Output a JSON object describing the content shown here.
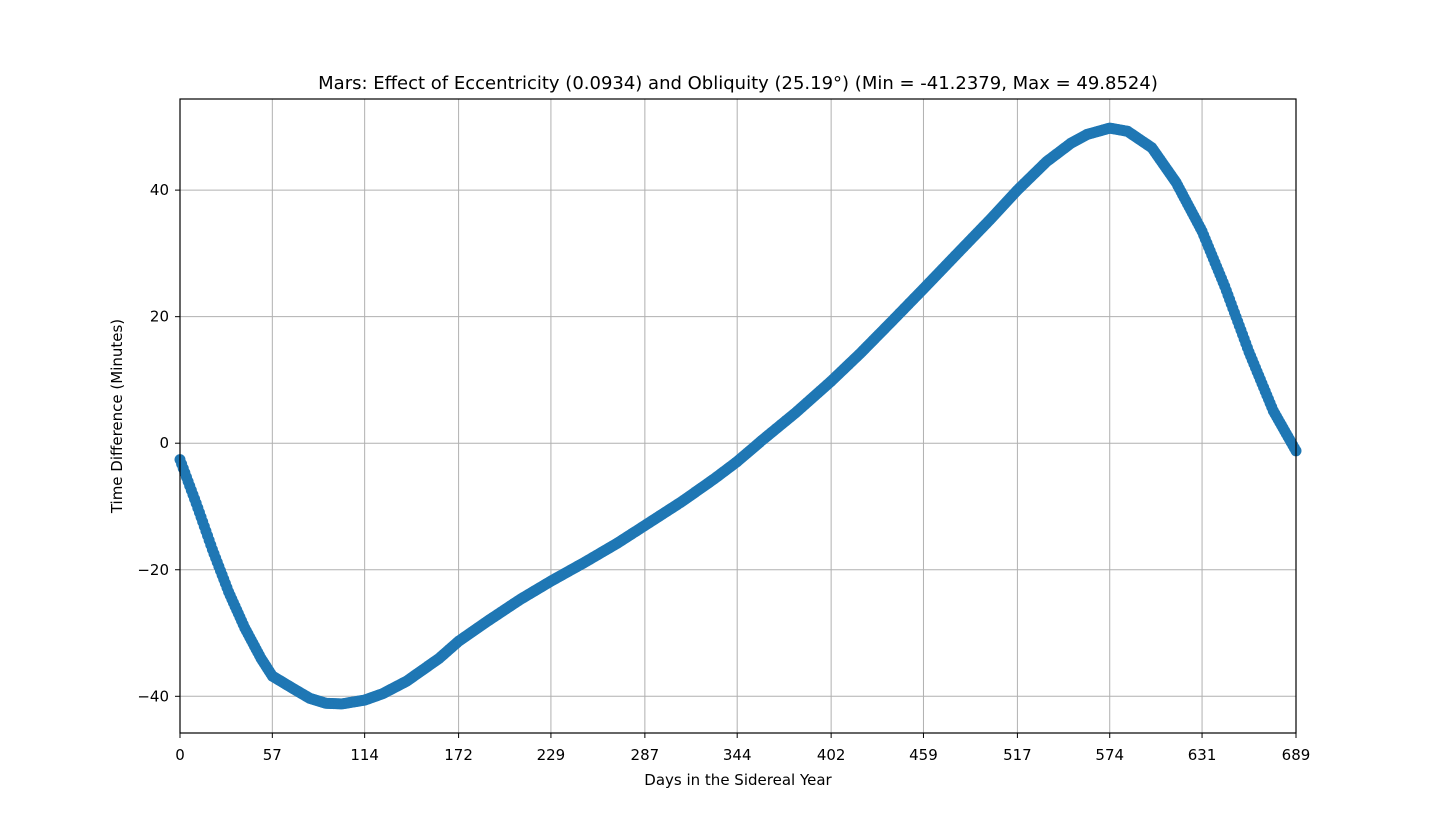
{
  "chart_data": {
    "type": "scatter",
    "title": "Mars: Effect of Eccentricity (0.0934) and Obliquity (25.19°) (Min = -41.2379, Max = 49.8524)",
    "xlabel": "Days in the Sidereal Year",
    "ylabel": "Time Difference (Minutes)",
    "xlim": [
      0,
      689
    ],
    "ylim": [
      -45.8,
      54.4
    ],
    "xticks": [
      0,
      57,
      114,
      172,
      229,
      287,
      344,
      402,
      459,
      517,
      574,
      631,
      689
    ],
    "xtick_labels": [
      "0",
      "57",
      "114",
      "172",
      "229",
      "287",
      "344",
      "402",
      "459",
      "517",
      "574",
      "631",
      "689"
    ],
    "yticks": [
      -40,
      -20,
      0,
      20,
      40
    ],
    "ytick_labels": [
      "−40",
      "−20",
      "0",
      "20",
      "40"
    ],
    "grid": true,
    "marker_color": "#1f77b4",
    "series": [
      {
        "x": [
          0,
          10,
          20,
          30,
          40,
          50,
          57,
          70,
          80,
          90,
          100,
          114,
          125,
          140,
          160,
          172,
          190,
          210,
          229,
          250,
          270,
          287,
          310,
          330,
          344,
          360,
          380,
          402,
          420,
          440,
          459,
          480,
          500,
          517,
          535,
          550,
          560,
          574,
          585,
          600,
          615,
          631,
          645,
          660,
          675,
          689
        ],
        "y": [
          -2.6,
          -9.5,
          -16.8,
          -23.5,
          -29.2,
          -34.0,
          -36.8,
          -38.8,
          -40.3,
          -41.1,
          -41.2,
          -40.6,
          -39.6,
          -37.6,
          -34.0,
          -31.3,
          -28.1,
          -24.7,
          -21.8,
          -18.8,
          -15.8,
          -13.0,
          -9.2,
          -5.6,
          -2.9,
          0.6,
          4.8,
          9.8,
          14.2,
          19.4,
          24.4,
          30.0,
          35.3,
          40.0,
          44.5,
          47.4,
          48.8,
          49.8,
          49.3,
          46.7,
          41.2,
          33.5,
          24.8,
          14.4,
          5.1,
          -1.2
        ]
      }
    ]
  }
}
